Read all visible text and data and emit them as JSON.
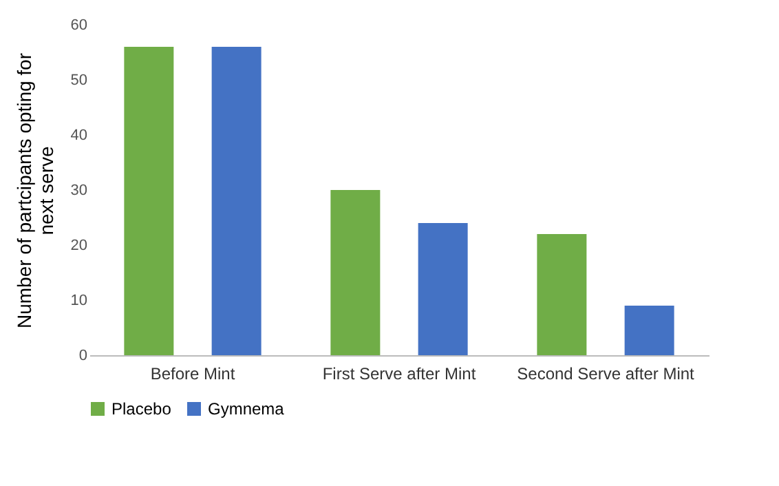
{
  "chart_data": {
    "type": "bar",
    "ylabel": "Number of partcipants opting for next serve",
    "categories": [
      "Before Mint",
      "First Serve after Mint",
      "Second Serve after Mint"
    ],
    "series": [
      {
        "name": "Placebo",
        "color": "#70ad47",
        "values": [
          56,
          30,
          22
        ]
      },
      {
        "name": "Gymnema",
        "color": "#4472c4",
        "values": [
          56,
          24,
          9
        ]
      }
    ],
    "ylim": [
      0,
      60
    ],
    "yticks": [
      0,
      10,
      20,
      30,
      40,
      50,
      60
    ],
    "grid": false,
    "legend": "bottom"
  }
}
